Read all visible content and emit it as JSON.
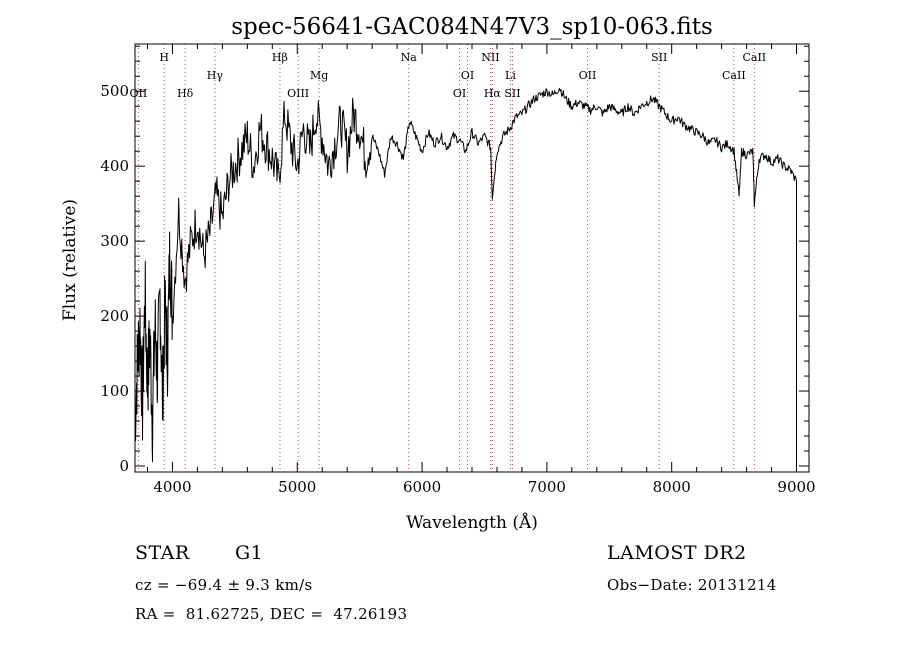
{
  "chart_data": {
    "type": "line",
    "title": "spec-56641-GAC084N47V3_sp10-063.fits",
    "xlabel": "Wavelength (Å)",
    "ylabel": "Flux (relative)",
    "xlim": [
      3700,
      9100
    ],
    "ylim": [
      -8,
      563
    ],
    "x_ticks": [
      4000,
      5000,
      6000,
      7000,
      8000,
      9000
    ],
    "y_ticks": [
      0,
      100,
      200,
      300,
      400,
      500
    ],
    "grid": false,
    "series": [
      {
        "x": [
          3700,
          3720,
          3740,
          3760,
          3780,
          3800,
          3820,
          3840,
          3860,
          3880,
          3900,
          3920,
          3940,
          3960,
          3980,
          4000,
          4050,
          4100,
          4150,
          4200,
          4250,
          4300,
          4350,
          4400,
          4450,
          4500,
          4550,
          4600,
          4650,
          4700,
          4750,
          4800,
          4850,
          4900,
          4950,
          5000,
          5050,
          5100,
          5150,
          5200,
          5250,
          5300,
          5350,
          5400,
          5450,
          5500,
          5550,
          5600,
          5650,
          5700,
          5750,
          5800,
          5850,
          5900,
          5950,
          6000,
          6050,
          6100,
          6150,
          6200,
          6250,
          6300,
          6350,
          6400,
          6450,
          6500,
          6550,
          6563,
          6600,
          6650,
          6700,
          6750,
          6800,
          6850,
          6900,
          6950,
          7000,
          7050,
          7100,
          7150,
          7200,
          7250,
          7300,
          7350,
          7400,
          7450,
          7500,
          7550,
          7600,
          7650,
          7700,
          7750,
          7800,
          7850,
          7900,
          7950,
          8000,
          8050,
          8100,
          8150,
          8200,
          8250,
          8300,
          8350,
          8400,
          8450,
          8500,
          8540,
          8560,
          8600,
          8650,
          8662,
          8700,
          8750,
          8800,
          8850,
          8900,
          8950,
          9000
        ],
        "y": [
          60,
          140,
          190,
          80,
          230,
          110,
          170,
          60,
          190,
          120,
          230,
          90,
          210,
          150,
          290,
          200,
          340,
          250,
          300,
          330,
          280,
          310,
          360,
          330,
          380,
          400,
          420,
          440,
          400,
          450,
          430,
          410,
          380,
          470,
          430,
          400,
          450,
          420,
          470,
          440,
          400,
          430,
          460,
          420,
          470,
          450,
          410,
          440,
          420,
          390,
          440,
          430,
          410,
          460,
          440,
          420,
          445,
          430,
          440,
          425,
          440,
          435,
          420,
          445,
          430,
          440,
          425,
          360,
          420,
          440,
          450,
          465,
          470,
          480,
          490,
          495,
          500,
          495,
          505,
          490,
          480,
          485,
          480,
          475,
          480,
          470,
          480,
          475,
          470,
          480,
          470,
          480,
          485,
          490,
          480,
          470,
          460,
          465,
          455,
          450,
          445,
          440,
          430,
          435,
          425,
          430,
          420,
          360,
          420,
          415,
          420,
          350,
          410,
          415,
          405,
          410,
          400,
          395,
          380
        ]
      }
    ],
    "lines": [
      {
        "label": "OII",
        "x": 3727,
        "row": 3
      },
      {
        "label": "H",
        "x": 3934,
        "row": 1
      },
      {
        "label": "Hδ",
        "x": 4102,
        "row": 3
      },
      {
        "label": "Hγ",
        "x": 4340,
        "row": 2
      },
      {
        "label": "Hβ",
        "x": 4861,
        "row": 1
      },
      {
        "label": "OIII",
        "x": 5007,
        "row": 3
      },
      {
        "label": "Mg",
        "x": 5175,
        "row": 2
      },
      {
        "label": "Na",
        "x": 5893,
        "row": 1
      },
      {
        "label": "OI",
        "x": 6300,
        "row": 3
      },
      {
        "label": "OI",
        "x": 6364,
        "row": 2
      },
      {
        "label": "NII",
        "x": 6548,
        "row": 1
      },
      {
        "label": "Hα",
        "x": 6563,
        "row": 3
      },
      {
        "label": "Li",
        "x": 6708,
        "row": 2
      },
      {
        "label": "SII",
        "x": 6724,
        "row": 3
      },
      {
        "label": "OII",
        "x": 7325,
        "row": 2
      },
      {
        "label": "SII",
        "x": 7900,
        "row": 1
      },
      {
        "label": "CaII",
        "x": 8498,
        "row": 2
      },
      {
        "label": "CaII",
        "x": 8662,
        "row": 1
      }
    ]
  },
  "info": {
    "object_class": "STAR",
    "subclass": "G1",
    "survey": "LAMOST DR2",
    "cz": "cz = −69.4 ± 9.3 km/s",
    "obs_date": "Obs−Date: 20131214",
    "radec": "RA =  81.62725, DEC =  47.26193"
  }
}
